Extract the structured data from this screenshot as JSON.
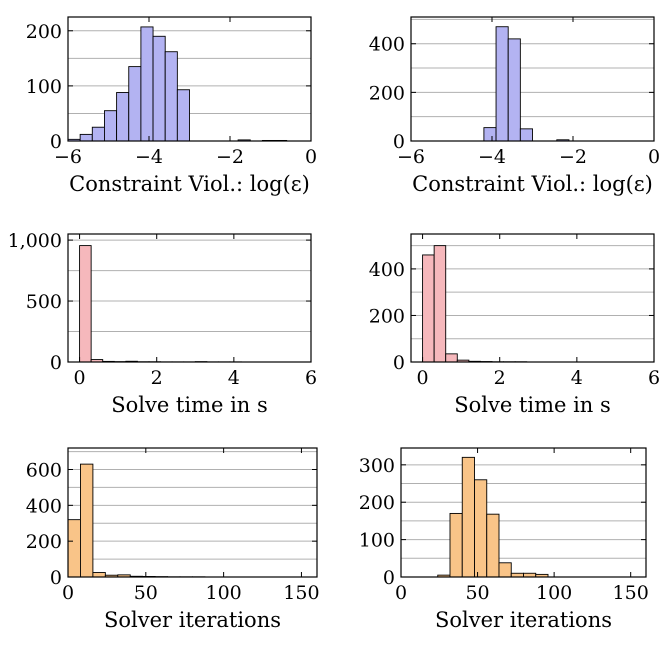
{
  "chart_data": [
    {
      "type": "bar",
      "xlabel": "Constraint Viol.: log(ε)",
      "xlim": [
        -6,
        0
      ],
      "ylim": [
        0,
        225
      ],
      "xticks": [
        -6,
        -4,
        -2,
        0
      ],
      "xtick_labels": [
        "−6",
        "−4",
        "−2",
        "0"
      ],
      "yticks": [
        0,
        100,
        200
      ],
      "ytick_labels": [
        "0",
        "100",
        "200"
      ],
      "bin_width": 0.3,
      "bins_start": [
        -6.0,
        -5.7,
        -5.4,
        -5.1,
        -4.8,
        -4.5,
        -4.2,
        -3.9,
        -3.6,
        -3.3,
        -3.0,
        -2.7,
        -2.4,
        -2.1,
        -1.8,
        -1.5,
        -1.2,
        -0.9,
        -0.6,
        -0.3
      ],
      "values": [
        3,
        12,
        25,
        55,
        88,
        135,
        207,
        190,
        162,
        93,
        0,
        0,
        0,
        0,
        2,
        0,
        1,
        1,
        0,
        0
      ],
      "bar_color": "#b3b3f2",
      "grid": "horizontal"
    },
    {
      "type": "bar",
      "xlabel": "Constraint Viol.: log(ε)",
      "xlim": [
        -6,
        0
      ],
      "ylim": [
        0,
        510
      ],
      "xticks": [
        -6,
        -4,
        -2,
        0
      ],
      "xtick_labels": [
        "−6",
        "−4",
        "−2",
        "0"
      ],
      "yticks": [
        0,
        200,
        400
      ],
      "ytick_labels": [
        "0",
        "200",
        "400"
      ],
      "bin_width": 0.3,
      "bins_start": [
        -6.0,
        -5.7,
        -5.4,
        -5.1,
        -4.8,
        -4.5,
        -4.2,
        -3.9,
        -3.6,
        -3.3,
        -3.0,
        -2.7,
        -2.4,
        -2.1,
        -1.8,
        -1.5,
        -1.2,
        -0.9,
        -0.6,
        -0.3
      ],
      "values": [
        0,
        0,
        0,
        0,
        0,
        0,
        55,
        470,
        420,
        50,
        0,
        0,
        5,
        0,
        0,
        0,
        0,
        0,
        0,
        0
      ],
      "bar_color": "#b3b3f2",
      "grid": "horizontal"
    },
    {
      "type": "bar",
      "xlabel": "Solve time in s",
      "xlim": [
        -0.3,
        6
      ],
      "ylim": [
        0,
        1050
      ],
      "xticks": [
        0,
        2,
        4,
        6
      ],
      "xtick_labels": [
        "0",
        "2",
        "4",
        "6"
      ],
      "yticks": [
        0,
        500,
        1000
      ],
      "ytick_labels": [
        "0",
        "500",
        "1,000"
      ],
      "bin_width": 0.3,
      "bins_start": [
        0.0,
        0.3,
        0.6,
        0.9,
        1.2,
        1.5,
        1.8,
        2.1,
        2.4,
        2.7,
        3.0,
        3.3,
        3.6,
        3.9,
        4.2,
        4.5,
        4.8,
        5.1,
        5.4,
        5.7
      ],
      "values": [
        955,
        20,
        5,
        3,
        6,
        2,
        2,
        1,
        1,
        1,
        3,
        1,
        1,
        1,
        0,
        0,
        0,
        0,
        0,
        0
      ],
      "bar_color": "#f6b8bc",
      "grid": "horizontal"
    },
    {
      "type": "bar",
      "xlabel": "Solve time in s",
      "xlim": [
        -0.3,
        6
      ],
      "ylim": [
        0,
        550
      ],
      "xticks": [
        0,
        2,
        4,
        6
      ],
      "xtick_labels": [
        "0",
        "2",
        "4",
        "6"
      ],
      "yticks": [
        0,
        200,
        400
      ],
      "ytick_labels": [
        "0",
        "200",
        "400"
      ],
      "bin_width": 0.3,
      "bins_start": [
        0.0,
        0.3,
        0.6,
        0.9,
        1.2,
        1.5,
        1.8,
        2.1,
        2.4,
        2.7,
        3.0,
        3.3,
        3.6,
        3.9,
        4.2,
        4.5,
        4.8,
        5.1,
        5.4,
        5.7
      ],
      "values": [
        460,
        500,
        35,
        8,
        3,
        2,
        1,
        1,
        1,
        0,
        0,
        0,
        0,
        0,
        0,
        0,
        0,
        0,
        0,
        0
      ],
      "bar_color": "#f6b8bc",
      "grid": "horizontal"
    },
    {
      "type": "bar",
      "xlabel": "Solver iterations",
      "xlim": [
        0,
        160
      ],
      "ylim": [
        0,
        720
      ],
      "xticks": [
        0,
        50,
        100,
        150
      ],
      "xtick_labels": [
        "0",
        "50",
        "100",
        "150"
      ],
      "yticks": [
        0,
        200,
        400,
        600
      ],
      "ytick_labels": [
        "0",
        "200",
        "400",
        "600"
      ],
      "bin_width": 8,
      "bins_start": [
        0,
        8,
        16,
        24,
        32,
        40,
        48,
        56,
        64,
        72,
        80,
        88,
        96,
        104,
        112,
        120,
        128,
        136,
        144,
        152
      ],
      "values": [
        320,
        630,
        25,
        10,
        12,
        4,
        3,
        2,
        1,
        1,
        1,
        0,
        0,
        0,
        0,
        0,
        0,
        0,
        0,
        0
      ],
      "bar_color": "#f9c488",
      "grid": "horizontal"
    },
    {
      "type": "bar",
      "xlabel": "Solver iterations",
      "xlim": [
        0,
        160
      ],
      "ylim": [
        0,
        345
      ],
      "xticks": [
        0,
        50,
        100,
        150
      ],
      "xtick_labels": [
        "0",
        "50",
        "100",
        "150"
      ],
      "yticks": [
        0,
        100,
        200,
        300
      ],
      "ytick_labels": [
        "0",
        "100",
        "200",
        "300"
      ],
      "bin_width": 8,
      "bins_start": [
        0,
        8,
        16,
        24,
        32,
        40,
        48,
        56,
        64,
        72,
        80,
        88,
        96,
        104,
        112,
        120,
        128,
        136,
        144,
        152
      ],
      "values": [
        0,
        0,
        0,
        5,
        170,
        320,
        260,
        168,
        38,
        10,
        10,
        7,
        0,
        0,
        0,
        0,
        0,
        0,
        0,
        0
      ],
      "bar_color": "#f9c488",
      "grid": "horizontal"
    }
  ]
}
